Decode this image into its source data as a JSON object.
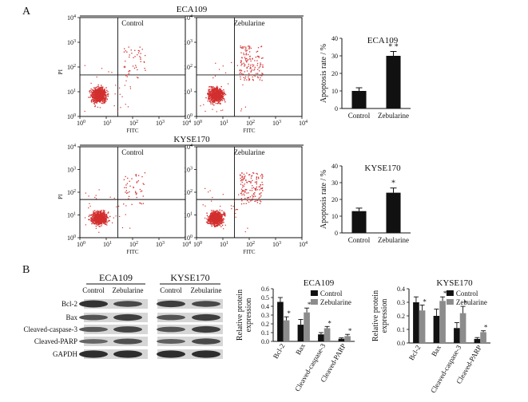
{
  "panel_a": {
    "label": "A",
    "lines": [
      {
        "name": "ECA109",
        "plots": [
          {
            "label": "Control",
            "dots": "control"
          },
          {
            "label": "Zebularine",
            "dots": "treated"
          }
        ]
      },
      {
        "name": "KYSE170",
        "plots": [
          {
            "label": "Control",
            "dots": "control"
          },
          {
            "label": "Zebularine",
            "dots": "treated"
          }
        ]
      }
    ],
    "flow_axes": {
      "x_label": "FITC",
      "y_label": "PI",
      "ticks": [
        "10",
        "10",
        "10",
        "10",
        "10"
      ],
      "exponents": [
        "0",
        "1",
        "2",
        "3",
        "4"
      ]
    }
  },
  "panel_b": {
    "label": "B",
    "blot_groups": [
      {
        "name": "ECA109",
        "lanes": [
          "Control",
          "Zebularine"
        ]
      },
      {
        "name": "KYSE170",
        "lanes": [
          "Control",
          "Zebularine"
        ]
      }
    ],
    "proteins": [
      "Bcl-2",
      "Bax",
      "Cleaved-caspase-3",
      "Cleaved-PARP",
      "GAPDH"
    ]
  },
  "chart_data": [
    {
      "type": "bar",
      "title": "ECA109",
      "ylabel": "Apoptosis rate / %",
      "categories": [
        "Control",
        "Zebularine"
      ],
      "values": [
        10,
        30
      ],
      "errors": [
        1.8,
        2.5
      ],
      "significance": [
        "",
        "* *"
      ],
      "ylim": [
        0,
        40
      ],
      "yticks": [
        "0",
        "10",
        "20",
        "30",
        "40"
      ],
      "colors": [
        "#111111",
        "#111111"
      ]
    },
    {
      "type": "bar",
      "title": "KYSE170",
      "ylabel": "Apoptosis rate / %",
      "categories": [
        "Control",
        "Zebularine"
      ],
      "values": [
        13,
        24
      ],
      "errors": [
        1.8,
        2.8
      ],
      "significance": [
        "",
        "*"
      ],
      "ylim": [
        0,
        40
      ],
      "yticks": [
        "0",
        "10",
        "20",
        "30",
        "40"
      ],
      "colors": [
        "#111111",
        "#111111"
      ]
    },
    {
      "type": "bar",
      "title": "ECA109",
      "ylabel": "Relative protein expression",
      "categories": [
        "Bcl-2",
        "Bax",
        "Cleaved-caspase-3",
        "Cleaved-PARP"
      ],
      "series": [
        {
          "name": "Control",
          "values": [
            0.45,
            0.19,
            0.08,
            0.03
          ],
          "errors": [
            0.05,
            0.06,
            0.02,
            0.01
          ],
          "color": "#111111"
        },
        {
          "name": "Zebularine",
          "values": [
            0.24,
            0.33,
            0.15,
            0.06
          ],
          "errors": [
            0.04,
            0.05,
            0.02,
            0.02
          ],
          "color": "#8c8c8c"
        }
      ],
      "significance": [
        "*",
        "*",
        "*",
        "*"
      ],
      "ylim": [
        0,
        0.6
      ],
      "yticks": [
        "0.0",
        "0.1",
        "0.2",
        "0.3",
        "0.4",
        "0.5",
        "0.6"
      ],
      "legend": "top-right"
    },
    {
      "type": "bar",
      "title": "KYSE170",
      "ylabel": "Relative protein expression",
      "categories": [
        "Bcl-2",
        "Bax",
        "Cleaved-caspase-3",
        "Cleaved-PARP"
      ],
      "series": [
        {
          "name": "Control",
          "values": [
            0.3,
            0.2,
            0.11,
            0.03
          ],
          "errors": [
            0.04,
            0.05,
            0.04,
            0.01
          ],
          "color": "#111111"
        },
        {
          "name": "Zebularine",
          "values": [
            0.24,
            0.31,
            0.22,
            0.08
          ],
          "errors": [
            0.04,
            0.03,
            0.05,
            0.01
          ],
          "color": "#8c8c8c"
        }
      ],
      "significance": [
        "*",
        "*",
        "*",
        "*"
      ],
      "ylim": [
        0,
        0.4
      ],
      "yticks": [
        "0.0",
        "0.1",
        "0.2",
        "0.3",
        "0.4"
      ],
      "legend": "top-right"
    }
  ]
}
